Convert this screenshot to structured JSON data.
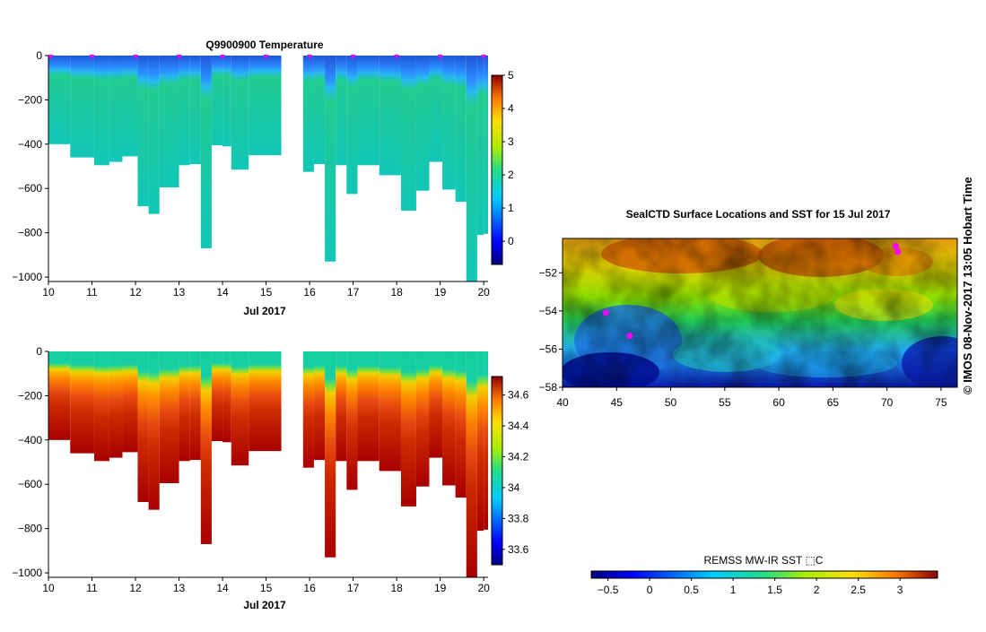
{
  "chart_data": [
    {
      "type": "heatmap",
      "title": "Q9900900  Temperature",
      "xlabel": "Jul 2017",
      "ylabel": "",
      "xlim": [
        10,
        20.1
      ],
      "ylim": [
        -1020,
        0
      ],
      "xticks": [
        "10",
        "11",
        "12",
        "13",
        "14",
        "15",
        "16",
        "17",
        "18",
        "19",
        "20"
      ],
      "yticks": [
        "0",
        "−200",
        "−400",
        "−600",
        "−800",
        "−1000"
      ],
      "colorbar": {
        "min": -0.7,
        "max": 5,
        "ticks": [
          "0",
          "1",
          "2",
          "3",
          "4",
          "5"
        ]
      },
      "profile_markers_day": [
        10.05,
        11.0,
        12.0,
        13.0,
        14.0,
        15.0,
        16.0,
        17.0,
        18.0,
        19.0,
        20.0
      ],
      "profiles": [
        {
          "x0": 10.0,
          "x1": 10.5,
          "depth": 400
        },
        {
          "x0": 10.5,
          "x1": 11.05,
          "depth": 460
        },
        {
          "x0": 11.05,
          "x1": 11.4,
          "depth": 495
        },
        {
          "x0": 11.4,
          "x1": 11.7,
          "depth": 480
        },
        {
          "x0": 11.7,
          "x1": 12.05,
          "depth": 455
        },
        {
          "x0": 12.05,
          "x1": 12.3,
          "depth": 680
        },
        {
          "x0": 12.3,
          "x1": 12.55,
          "depth": 715
        },
        {
          "x0": 12.55,
          "x1": 13.0,
          "depth": 595
        },
        {
          "x0": 13.0,
          "x1": 13.25,
          "depth": 495
        },
        {
          "x0": 13.25,
          "x1": 13.5,
          "depth": 490
        },
        {
          "x0": 13.5,
          "x1": 13.75,
          "depth": 870
        },
        {
          "x0": 13.75,
          "x1": 14.0,
          "depth": 405
        },
        {
          "x0": 14.0,
          "x1": 14.2,
          "depth": 410
        },
        {
          "x0": 14.2,
          "x1": 14.6,
          "depth": 515
        },
        {
          "x0": 14.6,
          "x1": 15.35,
          "depth": 450
        },
        {
          "x0": 15.85,
          "x1": 16.1,
          "depth": 525
        },
        {
          "x0": 16.1,
          "x1": 16.35,
          "depth": 490
        },
        {
          "x0": 16.35,
          "x1": 16.6,
          "depth": 930
        },
        {
          "x0": 16.6,
          "x1": 16.85,
          "depth": 495
        },
        {
          "x0": 16.85,
          "x1": 17.1,
          "depth": 625
        },
        {
          "x0": 17.1,
          "x1": 17.6,
          "depth": 495
        },
        {
          "x0": 17.6,
          "x1": 18.1,
          "depth": 540
        },
        {
          "x0": 18.1,
          "x1": 18.45,
          "depth": 700
        },
        {
          "x0": 18.45,
          "x1": 18.75,
          "depth": 610
        },
        {
          "x0": 18.75,
          "x1": 19.05,
          "depth": 480
        },
        {
          "x0": 19.05,
          "x1": 19.35,
          "depth": 605
        },
        {
          "x0": 19.35,
          "x1": 19.6,
          "depth": 660
        },
        {
          "x0": 19.6,
          "x1": 19.85,
          "depth": 1020
        },
        {
          "x0": 19.85,
          "x1": 20.0,
          "depth": 810
        },
        {
          "x0": 20.0,
          "x1": 20.1,
          "depth": 805
        }
      ]
    },
    {
      "type": "heatmap",
      "title": "",
      "xlabel": "Jul 2017",
      "ylabel": "",
      "xlim": [
        10,
        20.1
      ],
      "ylim": [
        -1020,
        0
      ],
      "xticks": [
        "10",
        "11",
        "12",
        "13",
        "14",
        "15",
        "16",
        "17",
        "18",
        "19",
        "20"
      ],
      "yticks": [
        "0",
        "−200",
        "−400",
        "−600",
        "−800",
        "−1000"
      ],
      "colorbar": {
        "min": 33.5,
        "max": 34.72,
        "ticks": [
          "33.6",
          "33.8",
          "34",
          "34.2",
          "34.4",
          "34.6"
        ]
      }
    },
    {
      "type": "heatmap",
      "title": "SealCTD Surface Locations and SST for 15 Jul 2017",
      "xlabel": "",
      "ylabel": "",
      "xlim": [
        40,
        76.5
      ],
      "ylim": [
        -58,
        -50.2
      ],
      "xticks": [
        "40",
        "45",
        "50",
        "55",
        "60",
        "65",
        "70",
        "75"
      ],
      "yticks": [
        "−52",
        "−54",
        "−56",
        "−58"
      ],
      "colorbar": {
        "label": "REMSS MW-IR SST ⬚C",
        "min": -0.7,
        "max": 3.45,
        "ticks": [
          "−0.5",
          "0",
          "0.5",
          "1",
          "1.5",
          "2",
          "2.5",
          "3"
        ]
      },
      "seal_locations": [
        {
          "lon": 46.2,
          "lat": -55.3
        },
        {
          "lon": 44.0,
          "lat": -54.1
        },
        {
          "lon": 70.8,
          "lat": -50.6
        },
        {
          "lon": 71.0,
          "lat": -50.9
        }
      ]
    }
  ],
  "credit": "©  IMOS 08-Nov-2017 13:05 Hobart Time"
}
